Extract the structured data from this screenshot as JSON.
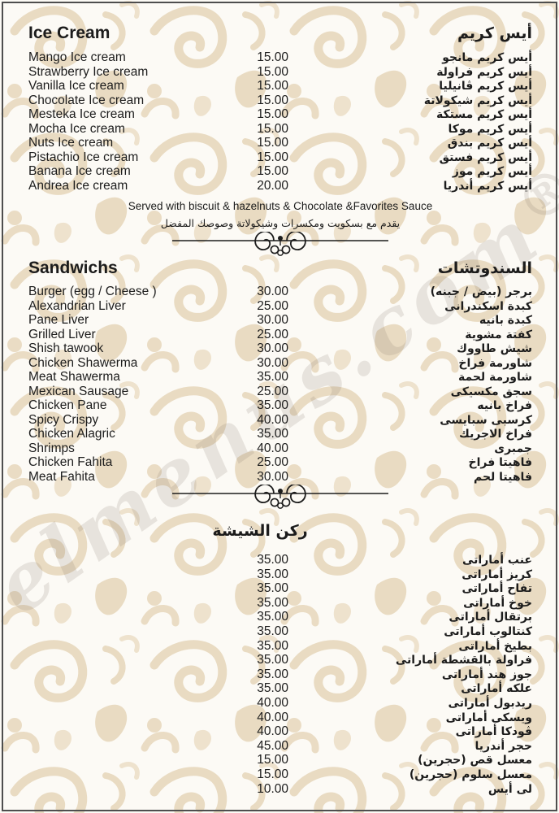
{
  "colors": {
    "background": "#fcfaf5",
    "pattern_beige": "#e9dbc2",
    "text": "#1c1c1c",
    "border": "#4e4e4e"
  },
  "watermark": {
    "text": "elmenus.com",
    "registered_mark": "®"
  },
  "sections": {
    "ice_cream": {
      "title_en": "Ice Cream",
      "title_ar": "أيس كريم",
      "items": [
        {
          "en": "Mango Ice cream",
          "price": "15.00",
          "ar": "أيس كريم مانجو"
        },
        {
          "en": "Strawberry Ice cream",
          "price": "15.00",
          "ar": "أيس كريم فراولة"
        },
        {
          "en": "Vanilla Ice cream",
          "price": "15.00",
          "ar": "أيس كريم ڤانيليا"
        },
        {
          "en": "Chocolate Ice cream",
          "price": "15.00",
          "ar": "أيس كريم شيكولاتة"
        },
        {
          "en": "Mesteka Ice cream",
          "price": "15.00",
          "ar": "أيس كريم مستكة"
        },
        {
          "en": "Mocha Ice cream",
          "price": "15.00",
          "ar": "أيس كريم موكا"
        },
        {
          "en": "Nuts Ice cream",
          "price": "15.00",
          "ar": "أيس كريم بندق"
        },
        {
          "en": "Pistachio Ice cream",
          "price": "15.00",
          "ar": "أيس كريم فستق"
        },
        {
          "en": "Banana Ice cream",
          "price": "15.00",
          "ar": "أيس كريم موز"
        },
        {
          "en": "Andrea Ice cream",
          "price": "20.00",
          "ar": "أيس كريم أندريا"
        }
      ],
      "note_en": "Served with biscuit & hazelnuts & Chocolate &Favorites Sauce",
      "note_ar": "يقدم مع بسكويت ومكسرات وشيكولاتة وصوصك المفضل"
    },
    "sandwichs": {
      "title_en": "Sandwichs",
      "title_ar": "السندوتشات",
      "items": [
        {
          "en": "Burger (egg / Cheese )",
          "price": "30.00",
          "ar": "برجر (بيض / جبنه)"
        },
        {
          "en": "Alexandrian Liver",
          "price": "25.00",
          "ar": "كبدة اسكندرانى"
        },
        {
          "en": "Pane Liver",
          "price": "30.00",
          "ar": "كبدة بانيه"
        },
        {
          "en": "Grilled Liver",
          "price": "25.00",
          "ar": "كفتة مشوية"
        },
        {
          "en": "Shish tawook",
          "price": "30.00",
          "ar": "شيش طاووك"
        },
        {
          "en": "Chicken Shawerma",
          "price": "30.00",
          "ar": "شاورمة فراخ"
        },
        {
          "en": "Meat Shawerma",
          "price": "35.00",
          "ar": "شاورمة لحمة"
        },
        {
          "en": "Mexican Sausage",
          "price": "25.00",
          "ar": "سجق مكسيكى"
        },
        {
          "en": "Chicken Pane",
          "price": "35.00",
          "ar": "فراخ بانيه"
        },
        {
          "en": "Spicy Crispy",
          "price": "40.00",
          "ar": "كرسبى سبايسى"
        },
        {
          "en": "Chicken Alagric",
          "price": "35.00",
          "ar": "فراخ الاجريك"
        },
        {
          "en": "Shrimps",
          "price": "40.00",
          "ar": "جمبرى"
        },
        {
          "en": "Chicken Fahita",
          "price": "25.00",
          "ar": "فاهيتا فراخ"
        },
        {
          "en": "Meat Fahita",
          "price": "30.00",
          "ar": "فاهيتا لحم"
        }
      ]
    },
    "shisha": {
      "title_ar": "ركن الشيشة",
      "items": [
        {
          "price": "35.00",
          "ar": "عنب أماراتى"
        },
        {
          "price": "35.00",
          "ar": "كريز أماراتى"
        },
        {
          "price": "35.00",
          "ar": "تفاح أماراتى"
        },
        {
          "price": "35.00",
          "ar": "خوخ أماراتى"
        },
        {
          "price": "35.00",
          "ar": "برتقال أماراتى"
        },
        {
          "price": "35.00",
          "ar": "كنتالوب أماراتى"
        },
        {
          "price": "35.00",
          "ar": "بطيخ أماراتى"
        },
        {
          "price": "35.00",
          "ar": "فراولة بالقشطة أماراتى"
        },
        {
          "price": "35.00",
          "ar": "جوز هند أماراتى"
        },
        {
          "price": "35.00",
          "ar": "علكه أماراتى"
        },
        {
          "price": "40.00",
          "ar": "ريدبول أماراتى"
        },
        {
          "price": "40.00",
          "ar": "ويسكى أماراتى"
        },
        {
          "price": "40.00",
          "ar": "ڤودكا أماراتى"
        },
        {
          "price": "45.00",
          "ar": "حجر أندريا"
        },
        {
          "price": "15.00",
          "ar": "معسل قص (حجرين)"
        },
        {
          "price": "15.00",
          "ar": "معسل سلوم (حجرين)"
        },
        {
          "price": "10.00",
          "ar": "لى أيس"
        }
      ]
    }
  }
}
